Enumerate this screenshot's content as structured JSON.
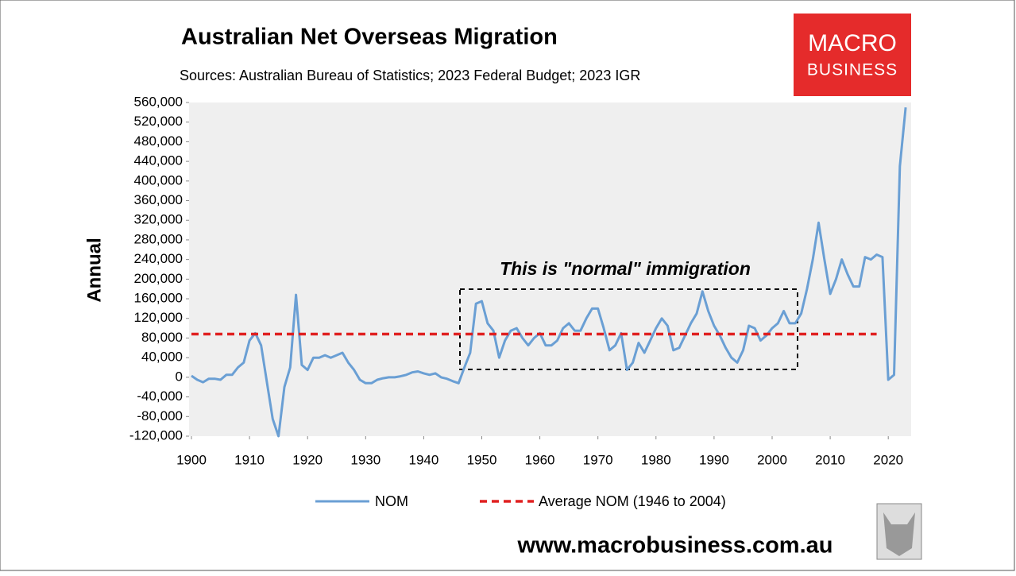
{
  "chart_data": {
    "type": "line",
    "title": "Australian Net Overseas Migration",
    "subtitle": "Sources: Australian Bureau of Statistics; 2023 Federal Budget; 2023 IGR",
    "y_label": "Annual",
    "annotation": "This is \"normal\" immigration",
    "logo": [
      "MACRO",
      "BUSINESS"
    ],
    "footer": "www.macrobusiness.com.au",
    "x": [
      1900,
      1901,
      1902,
      1903,
      1904,
      1905,
      1906,
      1907,
      1908,
      1909,
      1910,
      1911,
      1912,
      1913,
      1914,
      1915,
      1916,
      1917,
      1918,
      1919,
      1920,
      1921,
      1922,
      1923,
      1924,
      1925,
      1926,
      1927,
      1928,
      1929,
      1930,
      1931,
      1932,
      1933,
      1934,
      1935,
      1936,
      1937,
      1938,
      1939,
      1940,
      1941,
      1942,
      1943,
      1944,
      1945,
      1946,
      1947,
      1948,
      1949,
      1950,
      1951,
      1952,
      1953,
      1954,
      1955,
      1956,
      1957,
      1958,
      1959,
      1960,
      1961,
      1962,
      1963,
      1964,
      1965,
      1966,
      1967,
      1968,
      1969,
      1970,
      1971,
      1972,
      1973,
      1974,
      1975,
      1976,
      1977,
      1978,
      1979,
      1980,
      1981,
      1982,
      1983,
      1984,
      1985,
      1986,
      1987,
      1988,
      1989,
      1990,
      1991,
      1992,
      1993,
      1994,
      1995,
      1996,
      1997,
      1998,
      1999,
      2000,
      2001,
      2002,
      2003,
      2004,
      2005,
      2006,
      2007,
      2008,
      2009,
      2010,
      2011,
      2012,
      2013,
      2014,
      2015,
      2016,
      2017,
      2018,
      2019,
      2020,
      2021,
      2022,
      2023
    ],
    "series": [
      {
        "name": "NOM",
        "color": "#6a9fd4",
        "values": [
          3000,
          -5000,
          -10000,
          -3000,
          -3000,
          -5000,
          5000,
          5000,
          20000,
          30000,
          75000,
          90000,
          65000,
          -10000,
          -85000,
          -120000,
          -20000,
          20000,
          168000,
          25000,
          15000,
          40000,
          40000,
          45000,
          40000,
          45000,
          50000,
          30000,
          15000,
          -5000,
          -12000,
          -12000,
          -5000,
          -2000,
          0,
          0,
          2000,
          5000,
          10000,
          12000,
          8000,
          5000,
          8000,
          0,
          -3000,
          -8000,
          -12000,
          20000,
          50000,
          150000,
          155000,
          110000,
          95000,
          40000,
          75000,
          95000,
          100000,
          80000,
          65000,
          80000,
          90000,
          65000,
          65000,
          75000,
          100000,
          110000,
          95000,
          95000,
          120000,
          140000,
          140000,
          100000,
          55000,
          65000,
          90000,
          15000,
          30000,
          70000,
          50000,
          75000,
          100000,
          120000,
          105000,
          55000,
          60000,
          85000,
          110000,
          130000,
          175000,
          135000,
          105000,
          85000,
          60000,
          40000,
          30000,
          55000,
          105000,
          100000,
          75000,
          85000,
          100000,
          110000,
          135000,
          110000,
          110000,
          130000,
          180000,
          240000,
          315000,
          240000,
          170000,
          200000,
          240000,
          210000,
          185000,
          185000,
          245000,
          240000,
          250000,
          245000,
          -5000,
          5000,
          430000,
          550000
        ]
      }
    ],
    "average": {
      "name": "Average NOM (1946 to 2004)",
      "color": "#e02020",
      "value": 88000,
      "x": [
        1900,
        2018
      ]
    },
    "xlim": [
      1900,
      2024
    ],
    "xticks": [
      1900,
      1910,
      1920,
      1930,
      1940,
      1950,
      1960,
      1970,
      1980,
      1990,
      2000,
      2010,
      2020
    ],
    "ylim": [
      -120000,
      560000
    ],
    "yticks": [
      {
        "value": -120000,
        "label": "-120,000"
      },
      {
        "value": -80000,
        "label": "-80,000"
      },
      {
        "value": -40000,
        "label": "-40,000"
      },
      0,
      {
        "value": 40000,
        "label": "40,000"
      },
      {
        "value": 80000,
        "label": "80,000"
      },
      {
        "value": 120000,
        "label": "120,000"
      },
      {
        "value": 160000,
        "label": "160,000"
      },
      {
        "value": 200000,
        "label": "200,000"
      },
      {
        "value": 240000,
        "label": "240,000"
      },
      {
        "value": 280000,
        "label": "280,000"
      },
      {
        "value": 320000,
        "label": "320,000"
      },
      {
        "value": 360000,
        "label": "360,000"
      },
      {
        "value": 400000,
        "label": "400,000"
      },
      {
        "value": 440000,
        "label": "440,000"
      },
      {
        "value": 480000,
        "label": "480,000"
      },
      {
        "value": 520000,
        "label": "520,000"
      },
      {
        "value": 560000,
        "label": "560,000"
      }
    ]
  }
}
